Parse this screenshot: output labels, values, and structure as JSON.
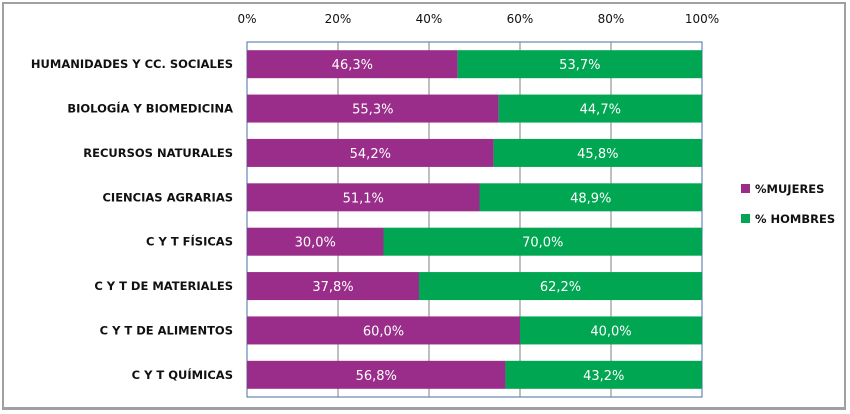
{
  "chart_data": {
    "type": "bar",
    "orientation": "horizontal",
    "stacked": "percent",
    "title": "",
    "xlabel": "",
    "ylabel": "",
    "xlim": [
      0,
      100
    ],
    "x_ticks": [
      "0%",
      "20%",
      "40%",
      "60%",
      "80%",
      "100%"
    ],
    "grid": true,
    "legend_position": "right",
    "categories": [
      "HUMANIDADES Y  CC. SOCIALES",
      "BIOLOGÍA Y BIOMEDICINA",
      "RECURSOS NATURALES",
      "CIENCIAS AGRARIAS",
      "C Y T FÍSICAS",
      "C Y T DE MATERIALES",
      "C Y T DE ALIMENTOS",
      "C Y T QUÍMICAS"
    ],
    "series": [
      {
        "name": "%MUJERES",
        "color": "#9b2d8a",
        "values": [
          46.3,
          55.3,
          54.2,
          51.1,
          30.0,
          37.8,
          60.0,
          56.8
        ],
        "labels": [
          "46,3%",
          "55,3%",
          "54,2%",
          "51,1%",
          "30,0%",
          "37,8%",
          "60,0%",
          "56,8%"
        ]
      },
      {
        "name": "% HOMBRES",
        "color": "#00a651",
        "values": [
          53.7,
          44.7,
          45.8,
          48.9,
          70.0,
          62.2,
          40.0,
          43.2
        ],
        "labels": [
          "53,7%",
          "44,7%",
          "45,8%",
          "48,9%",
          "70,0%",
          "62,2%",
          "40,0%",
          "43,2%"
        ]
      }
    ]
  }
}
